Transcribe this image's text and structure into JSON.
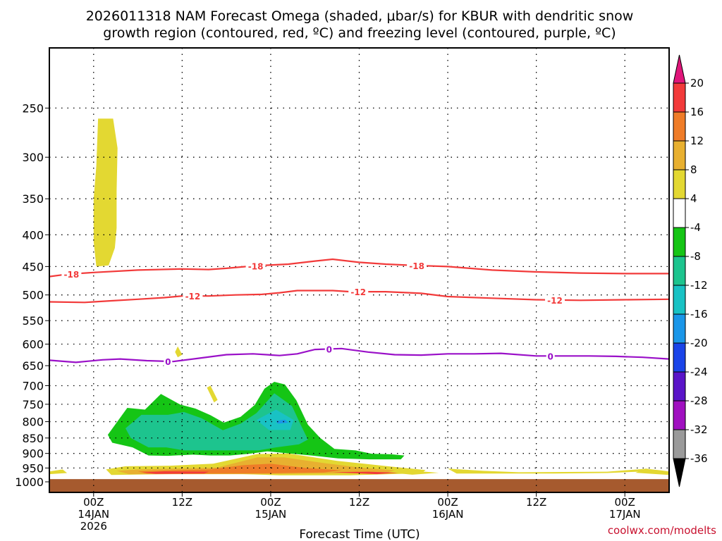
{
  "chart_data": {
    "type": "area",
    "title_line1": "2026011318 NAM Forecast Omega (shaded, μbar/s) for KBUR with dendritic snow",
    "title_line2": "growth region (contoured, red, ºC) and freezing level (contoured, purple, ºC)",
    "xlabel": "Forecast Time (UTC)",
    "credit": "coolwx.com/modelts",
    "x_range_hours": [
      -5,
      65
    ],
    "x_ticks": [
      {
        "hour": 0,
        "label1": "00Z",
        "label2": "14JAN",
        "label3": "2026"
      },
      {
        "hour": 10,
        "label1": "12Z",
        "label2": "",
        "label3": ""
      },
      {
        "hour": 20,
        "label1": "00Z",
        "label2": "15JAN",
        "label3": ""
      },
      {
        "hour": 30,
        "label1": "12Z",
        "label2": "",
        "label3": ""
      },
      {
        "hour": 40,
        "label1": "00Z",
        "label2": "16JAN",
        "label3": ""
      },
      {
        "hour": 50,
        "label1": "12Z",
        "label2": "",
        "label3": ""
      },
      {
        "hour": 60,
        "label1": "00Z",
        "label2": "17JAN",
        "label3": ""
      }
    ],
    "y_ticks_hpa": [
      250,
      300,
      350,
      400,
      450,
      500,
      550,
      600,
      650,
      700,
      750,
      800,
      850,
      900,
      950,
      1000
    ],
    "ylim_hpa": [
      200,
      1040
    ],
    "ground_hpa": 990,
    "colorbar": {
      "ticks": [
        "20",
        "16",
        "12",
        "8",
        "4",
        "-4",
        "-8",
        "-12",
        "-16",
        "-20",
        "-24",
        "-28",
        "-32",
        "-36"
      ],
      "colors": [
        "#f23a3a",
        "#ef7c28",
        "#e8b030",
        "#e3d832",
        "#ffffff",
        "#15c515",
        "#1dc48e",
        "#19c2c4",
        "#1a96e8",
        "#1a44e8",
        "#5a14c8",
        "#a010c0",
        "#9a9a9a"
      ],
      "top_arrow": "#e0167a",
      "bottom_arrow": "#000000"
    },
    "contour_labels": {
      "red": [
        "-18",
        "-12"
      ],
      "purple": [
        "0"
      ]
    },
    "series": [
      {
        "name": "-18",
        "color": "#f23a3a",
        "points": [
          [
            -5,
            467
          ],
          [
            -3,
            463
          ],
          [
            0,
            460
          ],
          [
            5,
            456
          ],
          [
            10,
            454
          ],
          [
            13,
            455
          ],
          [
            15,
            453
          ],
          [
            18,
            449
          ],
          [
            22,
            446
          ],
          [
            25,
            441
          ],
          [
            27,
            438
          ],
          [
            30,
            443
          ],
          [
            33,
            446
          ],
          [
            36,
            448
          ],
          [
            40,
            450
          ],
          [
            45,
            456
          ],
          [
            50,
            459
          ],
          [
            55,
            461
          ],
          [
            60,
            462
          ],
          [
            65,
            462
          ]
        ],
        "labels_at": [
          -2.5,
          18.3,
          36.5
        ]
      },
      {
        "name": "-12",
        "color": "#f23a3a",
        "points": [
          [
            -5,
            513
          ],
          [
            -1,
            514
          ],
          [
            2,
            511
          ],
          [
            5,
            508
          ],
          [
            8,
            505
          ],
          [
            10,
            502
          ],
          [
            13,
            502
          ],
          [
            16,
            500
          ],
          [
            19,
            499
          ],
          [
            21,
            496
          ],
          [
            23,
            492
          ],
          [
            27,
            492
          ],
          [
            29,
            494
          ],
          [
            33,
            494
          ],
          [
            37,
            497
          ],
          [
            40,
            503
          ],
          [
            45,
            506
          ],
          [
            50,
            509
          ],
          [
            55,
            510
          ],
          [
            60,
            509
          ],
          [
            65,
            508
          ]
        ],
        "labels_at": [
          11.2,
          29.9,
          52.1
        ]
      },
      {
        "name": "0",
        "color": "#9a10c8",
        "points": [
          [
            -5,
            637
          ],
          [
            -2,
            642
          ],
          [
            1,
            636
          ],
          [
            3,
            634
          ],
          [
            6,
            638
          ],
          [
            9,
            640
          ],
          [
            12,
            632
          ],
          [
            15,
            624
          ],
          [
            18,
            622
          ],
          [
            21,
            626
          ],
          [
            23,
            622
          ],
          [
            25,
            612
          ],
          [
            28,
            610
          ],
          [
            31,
            618
          ],
          [
            34,
            624
          ],
          [
            37,
            625
          ],
          [
            40,
            622
          ],
          [
            43,
            622
          ],
          [
            46,
            621
          ],
          [
            50,
            627
          ],
          [
            53,
            627
          ],
          [
            56,
            627
          ],
          [
            59,
            628
          ],
          [
            62,
            630
          ],
          [
            65,
            634
          ]
        ],
        "labels_at": [
          8.4,
          26.6,
          51.6
        ]
      }
    ],
    "shaded_regions": [
      {
        "value_range": "4 to 8",
        "color": "#e3d832",
        "points": [
          [
            0.5,
            260
          ],
          [
            2.2,
            260
          ],
          [
            2.7,
            290
          ],
          [
            2.6,
            340
          ],
          [
            2.6,
            390
          ],
          [
            2.4,
            420
          ],
          [
            1.7,
            448
          ],
          [
            0.3,
            450
          ],
          [
            0,
            410
          ],
          [
            0,
            350
          ],
          [
            0.3,
            310
          ]
        ]
      },
      {
        "value_range": "-4 to -8",
        "color": "#15c515",
        "points": [
          [
            1.6,
            840
          ],
          [
            3.8,
            760
          ],
          [
            5.8,
            765
          ],
          [
            7.6,
            722
          ],
          [
            9.8,
            751
          ],
          [
            11.5,
            762
          ],
          [
            13.2,
            781
          ],
          [
            14.7,
            803
          ],
          [
            16.6,
            786
          ],
          [
            18.2,
            752
          ],
          [
            19.3,
            708
          ],
          [
            20.4,
            690
          ],
          [
            21.6,
            697
          ],
          [
            22.9,
            739
          ],
          [
            24.2,
            809
          ],
          [
            25.6,
            850
          ],
          [
            27.2,
            885
          ],
          [
            29.6,
            890
          ],
          [
            31.4,
            901
          ],
          [
            33.6,
            903
          ],
          [
            35.1,
            907
          ],
          [
            34.7,
            920
          ],
          [
            31.2,
            920
          ],
          [
            27.6,
            917
          ],
          [
            24.6,
            907
          ],
          [
            22.1,
            900
          ],
          [
            19.6,
            893
          ],
          [
            17.6,
            901
          ],
          [
            15.4,
            907
          ],
          [
            13.2,
            907
          ],
          [
            11.2,
            904
          ],
          [
            8.4,
            908
          ],
          [
            6.2,
            907
          ],
          [
            4.4,
            880
          ],
          [
            2.1,
            865
          ]
        ]
      },
      {
        "value_range": "-8 to -12",
        "color": "#1dc48e",
        "points": [
          [
            3.6,
            820
          ],
          [
            5.4,
            780
          ],
          [
            8.4,
            780
          ],
          [
            10.2,
            772
          ],
          [
            12.2,
            790
          ],
          [
            14.6,
            826
          ],
          [
            16.6,
            806
          ],
          [
            18.4,
            775
          ],
          [
            20.4,
            720
          ],
          [
            22.4,
            755
          ],
          [
            23.4,
            810
          ],
          [
            24.2,
            855
          ],
          [
            23.2,
            870
          ],
          [
            20.6,
            880
          ],
          [
            18.6,
            890
          ],
          [
            16.6,
            890
          ],
          [
            14.6,
            890
          ],
          [
            12.6,
            890
          ],
          [
            10.2,
            890
          ],
          [
            8.2,
            880
          ],
          [
            6.2,
            880
          ],
          [
            4.2,
            850
          ]
        ]
      },
      {
        "value_range": "-12 to -16",
        "color": "#19c2c4",
        "points": [
          [
            18.4,
            795
          ],
          [
            20.6,
            765
          ],
          [
            22.6,
            795
          ],
          [
            22.2,
            825
          ],
          [
            19.8,
            825
          ]
        ]
      },
      {
        "value_range": "-16 to -20",
        "color": "#1a96e8",
        "points": [
          [
            20.6,
            798
          ],
          [
            21.6,
            794
          ],
          [
            22.0,
            803
          ],
          [
            20.8,
            806
          ]
        ]
      },
      {
        "value_range": "4 to 8",
        "color": "#e3d832",
        "points": [
          [
            9.5,
            605
          ],
          [
            10.0,
            624
          ],
          [
            9.5,
            630
          ],
          [
            9.2,
            618
          ]
        ]
      },
      {
        "value_range": "4 to 8",
        "color": "#e3d832",
        "points": [
          [
            13.2,
            700
          ],
          [
            14.0,
            738
          ],
          [
            13.6,
            745
          ],
          [
            12.8,
            705
          ]
        ]
      },
      {
        "value_range": "4 to 8",
        "color": "#e3d832",
        "points": [
          [
            -5,
            962
          ],
          [
            -3.5,
            955
          ],
          [
            -3,
            968
          ],
          [
            -5,
            972
          ]
        ]
      },
      {
        "value_range": "4 to 8",
        "color": "#e3d832",
        "points": [
          [
            1.4,
            955
          ],
          [
            3.6,
            944
          ],
          [
            8.6,
            942
          ],
          [
            13.5,
            935
          ],
          [
            18.5,
            902
          ],
          [
            22,
            900
          ],
          [
            27.5,
            925
          ],
          [
            33.5,
            945
          ],
          [
            37.5,
            957
          ],
          [
            37,
            969
          ],
          [
            29,
            976
          ],
          [
            21,
            976
          ],
          [
            15,
            970
          ],
          [
            8,
            972
          ],
          [
            2,
            975
          ]
        ]
      },
      {
        "value_range": "8 to 12",
        "color": "#e8b030",
        "points": [
          [
            2.6,
            960
          ],
          [
            5,
            955
          ],
          [
            9,
            952
          ],
          [
            14,
            948
          ],
          [
            18.5,
            913
          ],
          [
            21.5,
            913
          ],
          [
            26,
            933
          ],
          [
            30,
            948
          ],
          [
            34,
            958
          ],
          [
            33,
            968
          ],
          [
            25,
            970
          ],
          [
            18,
            972
          ],
          [
            10,
            972
          ],
          [
            4,
            972
          ]
        ]
      },
      {
        "value_range": "12 to 16",
        "color": "#ef7c28",
        "points": [
          [
            5,
            962
          ],
          [
            9,
            958
          ],
          [
            13,
            955
          ],
          [
            17,
            940
          ],
          [
            20,
            935
          ],
          [
            24,
            950
          ],
          [
            28,
            958
          ],
          [
            26,
            966
          ],
          [
            20,
            969
          ],
          [
            13,
            970
          ],
          [
            6,
            970
          ]
        ]
      },
      {
        "value_range": "16 to 20",
        "color": "#f23a3a",
        "points": [
          [
            5.5,
            966
          ],
          [
            8,
            962
          ],
          [
            13,
            963
          ],
          [
            12.5,
            970
          ],
          [
            7,
            971
          ]
        ]
      },
      {
        "value_range": "16 to 20",
        "color": "#f23a3a",
        "points": [
          [
            27,
            965
          ],
          [
            31,
            963
          ],
          [
            34.5,
            967
          ],
          [
            32,
            972
          ]
        ]
      },
      {
        "value_range": "4 to 8",
        "color": "#e3d832",
        "points": [
          [
            34,
            968
          ],
          [
            37,
            962
          ],
          [
            39,
            967
          ],
          [
            36,
            974
          ]
        ]
      },
      {
        "value_range": "4 to 8",
        "color": "#e3d832",
        "points": [
          [
            40,
            952
          ],
          [
            44,
            960
          ],
          [
            48,
            965
          ],
          [
            53,
            964
          ],
          [
            58,
            963
          ],
          [
            62.6,
            952
          ],
          [
            61.5,
            963
          ],
          [
            58,
            968
          ],
          [
            52,
            970
          ],
          [
            46,
            970
          ],
          [
            41,
            970
          ]
        ]
      },
      {
        "value_range": "4 to 8",
        "color": "#e3d832",
        "points": [
          [
            61.2,
            967
          ],
          [
            62.3,
            952
          ],
          [
            64,
            958
          ],
          [
            65,
            962
          ],
          [
            65,
            975
          ]
        ]
      }
    ]
  }
}
